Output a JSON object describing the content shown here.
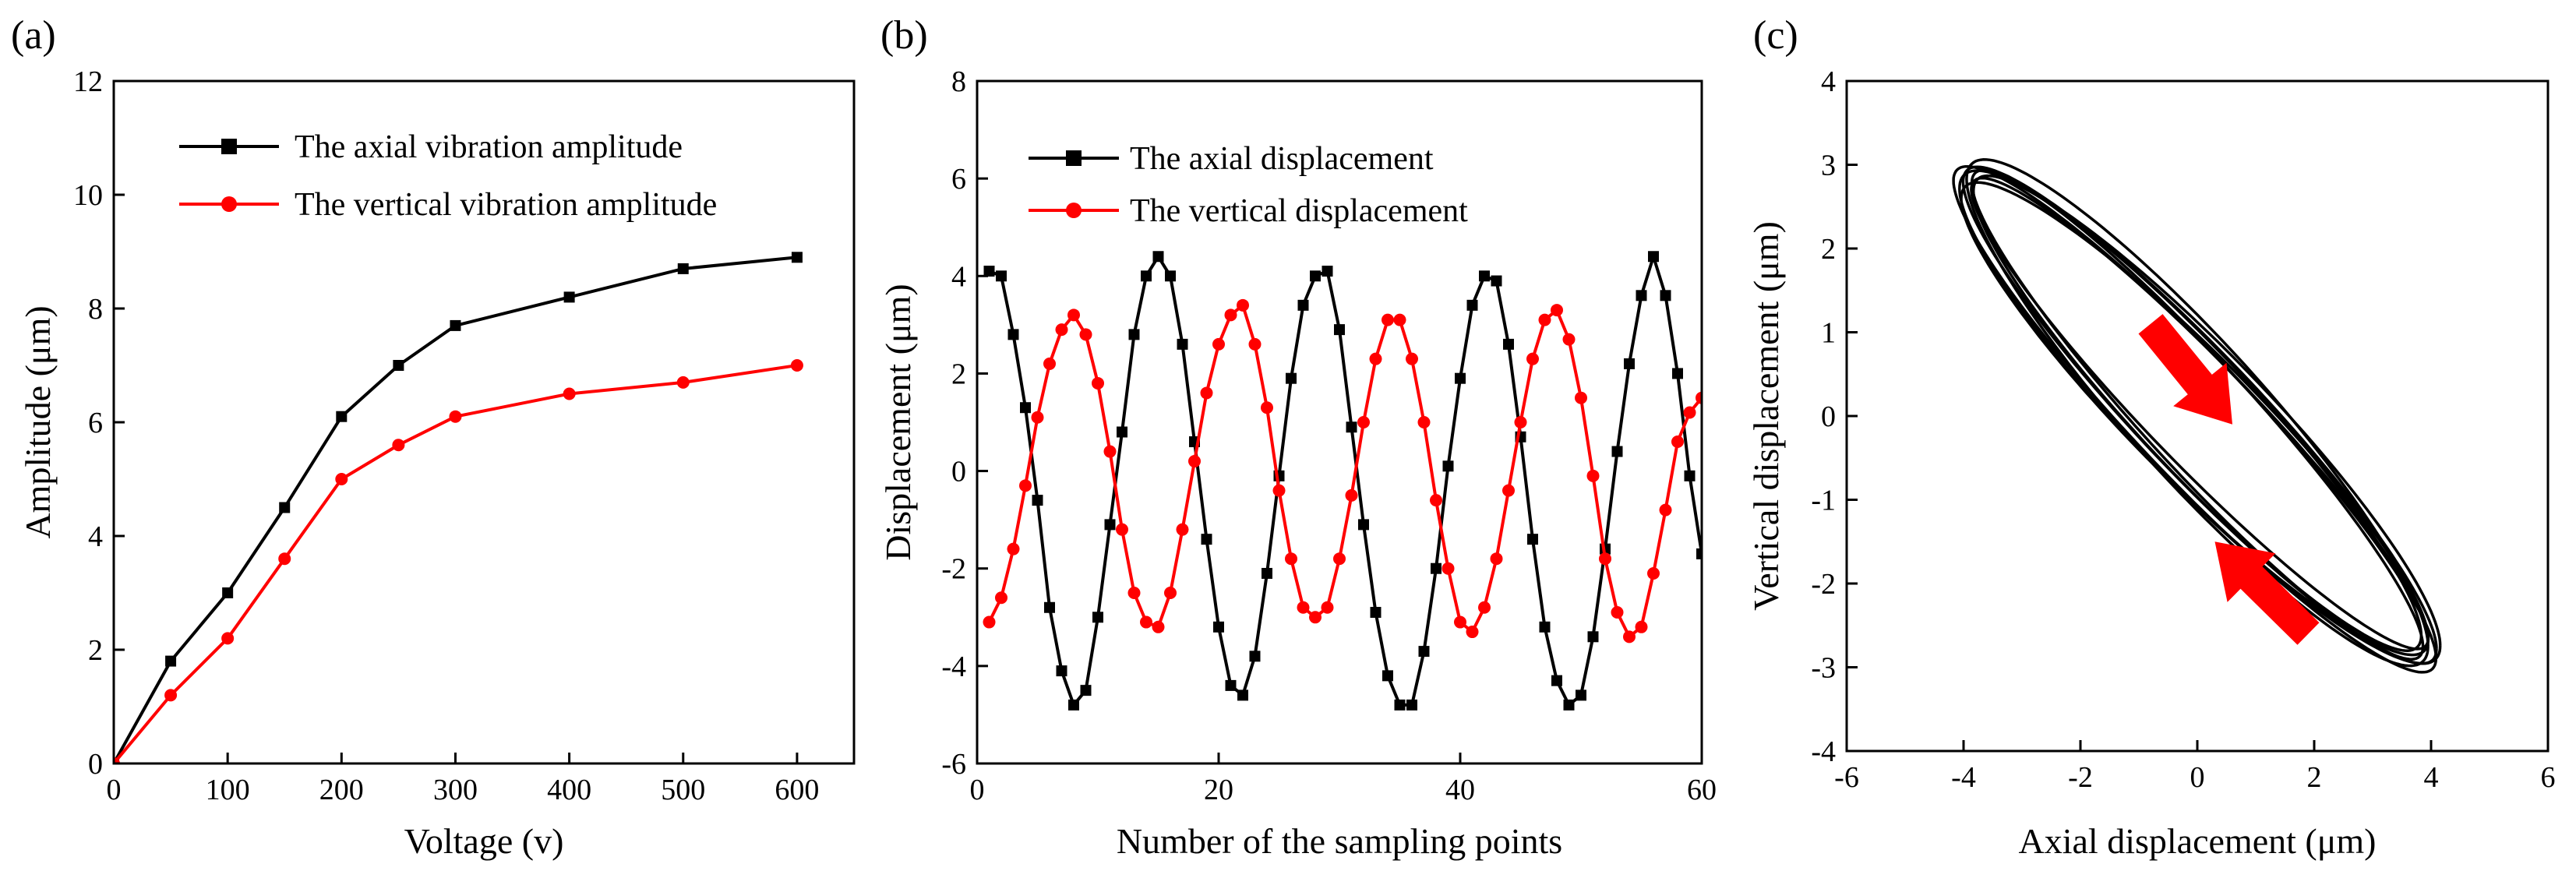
{
  "colors": {
    "black": "#000000",
    "red": "#ff0000",
    "arrow": "#ff0000"
  },
  "chart_data": [
    {
      "panel": "(a)",
      "type": "line",
      "xlabel": "Voltage (v)",
      "ylabel": "Amplitude (μm)",
      "xlim": [
        0,
        650
      ],
      "ylim": [
        0,
        12
      ],
      "xticks": [
        0,
        100,
        200,
        300,
        400,
        500,
        600
      ],
      "yticks": [
        0,
        2,
        4,
        6,
        8,
        10,
        12
      ],
      "legend_position": "top-right",
      "series": [
        {
          "name": "The axial vibration amplitude",
          "color": "#000000",
          "marker": "square",
          "x": [
            0,
            50,
            100,
            150,
            200,
            250,
            300,
            400,
            500,
            600
          ],
          "y": [
            0,
            1.8,
            3.0,
            4.5,
            6.1,
            7.0,
            7.7,
            8.2,
            8.7,
            8.9
          ]
        },
        {
          "name": "The vertical vibration amplitude",
          "color": "#ff0000",
          "marker": "circle",
          "x": [
            0,
            50,
            100,
            150,
            200,
            250,
            300,
            400,
            500,
            600
          ],
          "y": [
            0,
            1.2,
            2.2,
            3.6,
            5.0,
            5.6,
            6.1,
            6.5,
            6.7,
            7.0
          ]
        }
      ]
    },
    {
      "panel": "(b)",
      "type": "line",
      "xlabel": "Number of the sampling points",
      "ylabel": "Displacement (μm)",
      "xlim": [
        0,
        60
      ],
      "ylim": [
        -6,
        8
      ],
      "xticks": [
        0,
        20,
        40,
        60
      ],
      "yticks": [
        -6,
        -4,
        -2,
        0,
        2,
        4,
        6,
        8
      ],
      "legend_position": "top-center",
      "series": [
        {
          "name": "The axial displacement",
          "color": "#000000",
          "marker": "square",
          "x": [
            1,
            2,
            3,
            4,
            5,
            6,
            7,
            8,
            9,
            10,
            11,
            12,
            13,
            14,
            15,
            16,
            17,
            18,
            19,
            20,
            21,
            22,
            23,
            24,
            25,
            26,
            27,
            28,
            29,
            30,
            31,
            32,
            33,
            34,
            35,
            36,
            37,
            38,
            39,
            40,
            41,
            42,
            43,
            44,
            45,
            46,
            47,
            48,
            49,
            50,
            51,
            52,
            53,
            54,
            55,
            56,
            57,
            58,
            59,
            60
          ],
          "y": [
            4.1,
            4.0,
            2.8,
            1.3,
            -0.6,
            -2.8,
            -4.1,
            -4.8,
            -4.5,
            -3.0,
            -1.1,
            0.8,
            2.8,
            4.0,
            4.4,
            4.0,
            2.6,
            0.6,
            -1.4,
            -3.2,
            -4.4,
            -4.6,
            -3.8,
            -2.1,
            -0.1,
            1.9,
            3.4,
            4.0,
            4.1,
            2.9,
            0.9,
            -1.1,
            -2.9,
            -4.2,
            -4.8,
            -4.8,
            -3.7,
            -2.0,
            0.1,
            1.9,
            3.4,
            4.0,
            3.9,
            2.6,
            0.7,
            -1.4,
            -3.2,
            -4.3,
            -4.8,
            -4.6,
            -3.4,
            -1.6,
            0.4,
            2.2,
            3.6,
            4.4,
            3.6,
            2.0,
            -0.1,
            -1.7
          ]
        },
        {
          "name": "The vertical displacement",
          "color": "#ff0000",
          "marker": "circle",
          "x": [
            1,
            2,
            3,
            4,
            5,
            6,
            7,
            8,
            9,
            10,
            11,
            12,
            13,
            14,
            15,
            16,
            17,
            18,
            19,
            20,
            21,
            22,
            23,
            24,
            25,
            26,
            27,
            28,
            29,
            30,
            31,
            32,
            33,
            34,
            35,
            36,
            37,
            38,
            39,
            40,
            41,
            42,
            43,
            44,
            45,
            46,
            47,
            48,
            49,
            50,
            51,
            52,
            53,
            54,
            55,
            56,
            57,
            58,
            59,
            60
          ],
          "y": [
            -3.1,
            -2.6,
            -1.6,
            -0.3,
            1.1,
            2.2,
            2.9,
            3.2,
            2.8,
            1.8,
            0.4,
            -1.2,
            -2.5,
            -3.1,
            -3.2,
            -2.5,
            -1.2,
            0.2,
            1.6,
            2.6,
            3.2,
            3.4,
            2.6,
            1.3,
            -0.4,
            -1.8,
            -2.8,
            -3.0,
            -2.8,
            -1.8,
            -0.5,
            1.0,
            2.3,
            3.1,
            3.1,
            2.3,
            1.0,
            -0.6,
            -2.0,
            -3.1,
            -3.3,
            -2.8,
            -1.8,
            -0.4,
            1.0,
            2.3,
            3.1,
            3.3,
            2.7,
            1.5,
            -0.1,
            -1.8,
            -2.9,
            -3.4,
            -3.2,
            -2.1,
            -0.8,
            0.6,
            1.2,
            1.5
          ]
        }
      ]
    },
    {
      "panel": "(c)",
      "type": "line",
      "xlabel": "Axial displacement (μm)",
      "ylabel": "Vertical displacement (μm)",
      "xlim": [
        -6,
        6
      ],
      "ylim": [
        -4,
        4
      ],
      "xticks": [
        -6,
        -4,
        -2,
        0,
        2,
        4,
        6
      ],
      "yticks": [
        -4,
        -3,
        -2,
        -1,
        0,
        1,
        2,
        3,
        4
      ],
      "trajectory": {
        "shape": "elliptical loops",
        "axial_amplitude": 4.2,
        "vertical_amplitude": 3.1,
        "phase_lag_deg": 160,
        "loops": 8
      },
      "arrows": [
        {
          "from": [
            -0.8,
            1.1
          ],
          "to": [
            0.6,
            -0.1
          ],
          "direction": "down-right"
        },
        {
          "from": [
            1.9,
            -2.6
          ],
          "to": [
            0.3,
            -1.5
          ],
          "direction": "up-left"
        }
      ]
    }
  ]
}
